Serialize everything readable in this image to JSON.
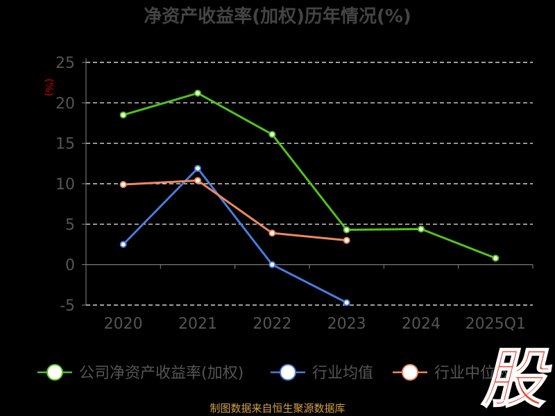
{
  "chart_data": {
    "type": "line",
    "title": "净资产收益率(加权)历年情况(%)",
    "ylabel": "(%)",
    "xlabel": "",
    "categories": [
      "2020",
      "2021",
      "2022",
      "2023",
      "2024",
      "2025Q1"
    ],
    "ylim": [
      -5,
      25
    ],
    "yticks": [
      25,
      20,
      15,
      10,
      5,
      0,
      -5
    ],
    "grid": true,
    "legend_position": "bottom",
    "series": [
      {
        "name": "公司净资产收益率(加权)",
        "color": "#52c41a",
        "values": [
          18.5,
          21.2,
          16.1,
          4.3,
          4.4,
          0.8
        ]
      },
      {
        "name": "行业均值",
        "color": "#4a7de0",
        "values": [
          2.5,
          11.9,
          0.0,
          -4.7,
          null,
          null
        ]
      },
      {
        "name": "行业中位数",
        "color": "#f08a5d",
        "values": [
          9.9,
          10.4,
          3.9,
          3.0,
          null,
          null
        ]
      }
    ]
  },
  "source": "制图数据来自恒生聚源数据库",
  "logo": {
    "text": "股",
    "color": "#e8452c"
  }
}
